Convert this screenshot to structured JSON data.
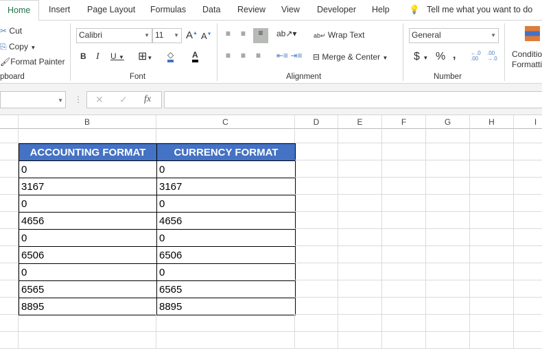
{
  "tabs": [
    "Home",
    "Insert",
    "Page Layout",
    "Formulas",
    "Data",
    "Review",
    "View",
    "Developer",
    "Help"
  ],
  "tell_me": "Tell me what you want to do",
  "clipboard": {
    "cut": "Cut",
    "copy": "Copy",
    "format_painter": "Format Painter",
    "label": "pboard"
  },
  "font": {
    "name": "Calibri",
    "size": "11",
    "label": "Font"
  },
  "alignment": {
    "wrap": "Wrap Text",
    "merge": "Merge & Center",
    "label": "Alignment"
  },
  "number": {
    "format": "General",
    "label": "Number",
    "dollar": "$",
    "percent": "%",
    "comma": ","
  },
  "styles": {
    "conditional": "Conditional",
    "formatting": "Formatting"
  },
  "formula_bar": {
    "fx": "fx",
    "value": ""
  },
  "columns": [
    "B",
    "C",
    "D",
    "E",
    "F",
    "G",
    "H",
    "I"
  ],
  "table": {
    "headers": [
      "ACCOUNTING FORMAT",
      "CURRENCY FORMAT"
    ],
    "rows": [
      [
        "0",
        "0"
      ],
      [
        "3167",
        "3167"
      ],
      [
        "0",
        "0"
      ],
      [
        "4656",
        "4656"
      ],
      [
        "0",
        "0"
      ],
      [
        "6506",
        "6506"
      ],
      [
        "0",
        "0"
      ],
      [
        "6565",
        "6565"
      ],
      [
        "8895",
        "8895"
      ]
    ],
    "header_color": "#4472c4"
  }
}
